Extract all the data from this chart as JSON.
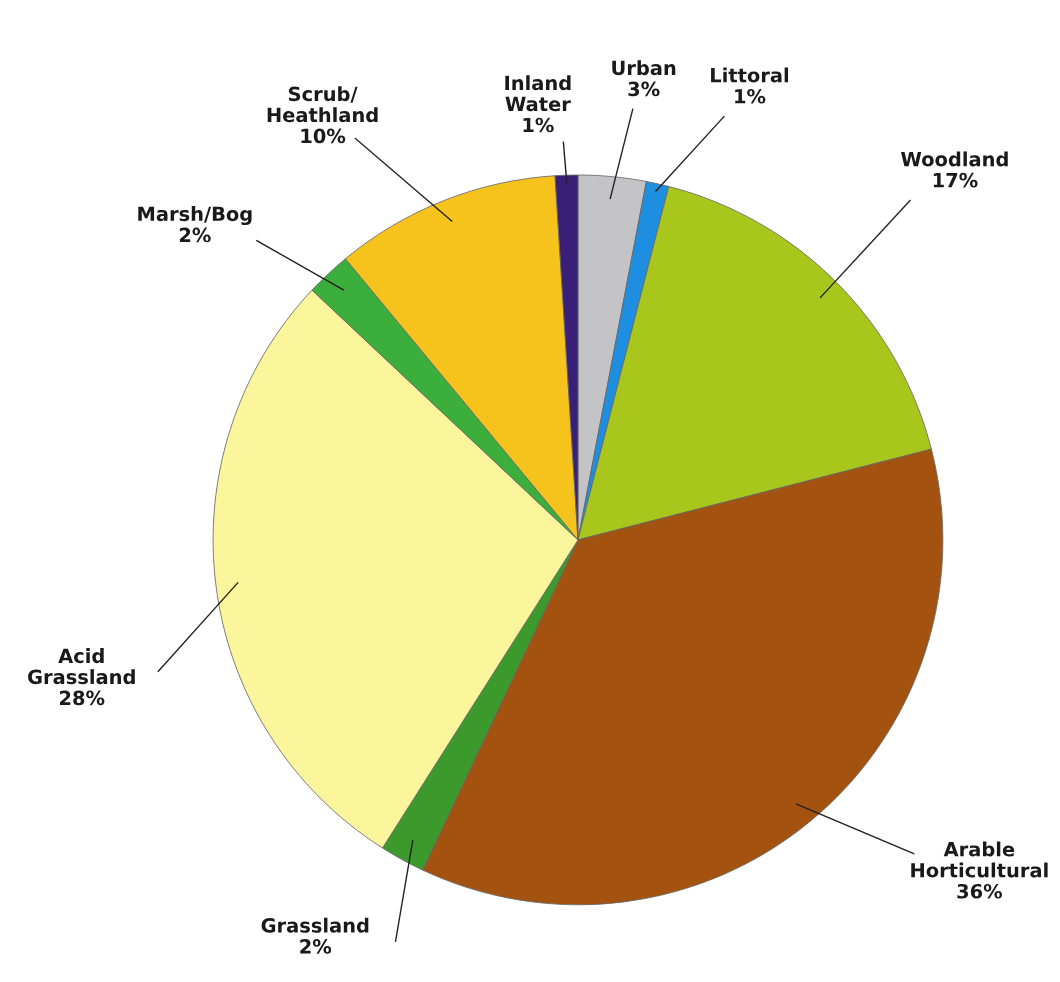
{
  "chart_data": {
    "type": "pie",
    "categories": [
      "Urban",
      "Littoral",
      "Woodland",
      "Arable\nHorticultural",
      "Grassland",
      "Acid\nGrassland",
      "Marsh/Bog",
      "Scrub/\nHeathland",
      "Inland\nWater"
    ],
    "values": [
      3,
      1,
      17,
      36,
      2,
      28,
      2,
      10,
      1
    ],
    "value_labels": [
      "3%",
      "1%",
      "17%",
      "36%",
      "2%",
      "28%",
      "2%",
      "10%",
      "1%"
    ],
    "colors": [
      "#c4c4c6",
      "#1e8fe0",
      "#a9c61c",
      "#a3520f",
      "#3c9a2c",
      "#fbf59c",
      "#3cae3c",
      "#f6c21c",
      "#3a1f78"
    ]
  }
}
